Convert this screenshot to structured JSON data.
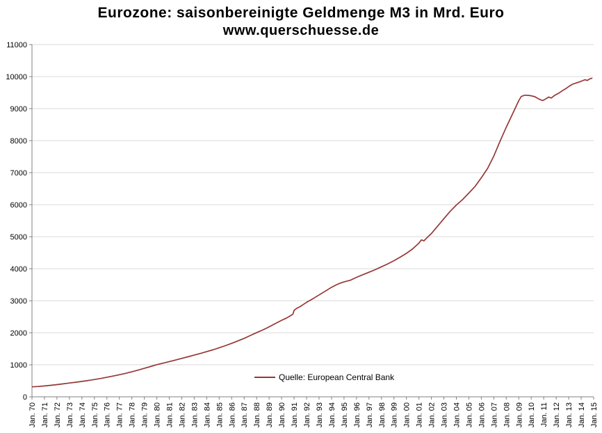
{
  "chart_data": {
    "type": "line",
    "title": "Eurozone: saisonbereinigte Geldmenge M3 in Mrd. Euro",
    "subtitle": "www.querschuesse.de",
    "xlabel": "",
    "ylabel": "",
    "xlim": [
      1970,
      2015
    ],
    "ylim": [
      0,
      11000
    ],
    "y_ticks": [
      0,
      1000,
      2000,
      3000,
      4000,
      5000,
      6000,
      7000,
      8000,
      9000,
      10000,
      11000
    ],
    "x_tick_labels": [
      "Jan. 70",
      "Jan. 71",
      "Jan. 72",
      "Jan. 73",
      "Jan. 74",
      "Jan. 75",
      "Jan. 76",
      "Jan. 77",
      "Jan. 78",
      "Jan. 79",
      "Jan. 80",
      "Jan. 81",
      "Jan. 82",
      "Jan. 83",
      "Jan. 84",
      "Jan. 85",
      "Jan. 86",
      "Jan. 87",
      "Jan. 88",
      "Jan. 89",
      "Jan. 90",
      "Jan. 91",
      "Jan. 92",
      "Jan. 93",
      "Jan. 94",
      "Jan. 95",
      "Jan. 96",
      "Jan. 97",
      "Jan. 98",
      "Jan. 99",
      "Jan. 00",
      "Jan. 01",
      "Jan. 02",
      "Jan. 03",
      "Jan. 04",
      "Jan. 05",
      "Jan. 06",
      "Jan. 07",
      "Jan. 08",
      "Jan. 09",
      "Jan. 10",
      "Jan. 11",
      "Jan. 12",
      "Jan. 13",
      "Jan. 14",
      "Jan. 15"
    ],
    "grid": "horizontal",
    "legend": {
      "label": "Quelle: European Central Bank",
      "position": "bottom-center"
    },
    "series": [
      {
        "name": "Quelle: European Central Bank",
        "color": "#953735",
        "points": [
          [
            1970,
            310
          ],
          [
            1970.5,
            322
          ],
          [
            1971,
            340
          ],
          [
            1971.5,
            358
          ],
          [
            1972,
            380
          ],
          [
            1972.5,
            404
          ],
          [
            1973,
            430
          ],
          [
            1973.5,
            455
          ],
          [
            1974,
            480
          ],
          [
            1974.5,
            508
          ],
          [
            1975,
            540
          ],
          [
            1975.5,
            572
          ],
          [
            1976,
            610
          ],
          [
            1976.5,
            648
          ],
          [
            1977,
            690
          ],
          [
            1977.5,
            733
          ],
          [
            1978,
            780
          ],
          [
            1978.5,
            833
          ],
          [
            1979,
            890
          ],
          [
            1979.5,
            945
          ],
          [
            1980,
            1005
          ],
          [
            1980.5,
            1050
          ],
          [
            1981,
            1100
          ],
          [
            1981.5,
            1148
          ],
          [
            1982,
            1200
          ],
          [
            1982.5,
            1250
          ],
          [
            1983,
            1302
          ],
          [
            1983.5,
            1355
          ],
          [
            1984,
            1410
          ],
          [
            1984.5,
            1468
          ],
          [
            1985,
            1530
          ],
          [
            1985.5,
            1598
          ],
          [
            1986,
            1670
          ],
          [
            1986.5,
            1745
          ],
          [
            1987,
            1825
          ],
          [
            1987.5,
            1915
          ],
          [
            1988,
            2005
          ],
          [
            1988.5,
            2090
          ],
          [
            1989,
            2185
          ],
          [
            1989.5,
            2290
          ],
          [
            1990,
            2390
          ],
          [
            1990.4,
            2460
          ],
          [
            1990.7,
            2530
          ],
          [
            1990.9,
            2580
          ],
          [
            1991,
            2700
          ],
          [
            1991.2,
            2760
          ],
          [
            1991.5,
            2820
          ],
          [
            1992,
            2950
          ],
          [
            1992.5,
            3060
          ],
          [
            1993,
            3180
          ],
          [
            1993.5,
            3300
          ],
          [
            1994,
            3420
          ],
          [
            1994.4,
            3500
          ],
          [
            1994.7,
            3550
          ],
          [
            1995,
            3590
          ],
          [
            1995.5,
            3640
          ],
          [
            1996,
            3730
          ],
          [
            1996.5,
            3810
          ],
          [
            1997,
            3890
          ],
          [
            1997.5,
            3970
          ],
          [
            1998,
            4060
          ],
          [
            1998.5,
            4150
          ],
          [
            1999,
            4250
          ],
          [
            1999.5,
            4360
          ],
          [
            2000,
            4480
          ],
          [
            2000.5,
            4620
          ],
          [
            2001,
            4800
          ],
          [
            2001.2,
            4900
          ],
          [
            2001.4,
            4870
          ],
          [
            2001.6,
            4950
          ],
          [
            2002,
            5100
          ],
          [
            2002.5,
            5330
          ],
          [
            2003,
            5560
          ],
          [
            2003.5,
            5790
          ],
          [
            2004,
            5990
          ],
          [
            2004.5,
            6160
          ],
          [
            2005,
            6360
          ],
          [
            2005.5,
            6570
          ],
          [
            2006,
            6840
          ],
          [
            2006.5,
            7130
          ],
          [
            2007,
            7520
          ],
          [
            2007.5,
            7980
          ],
          [
            2008,
            8420
          ],
          [
            2008.4,
            8750
          ],
          [
            2008.7,
            9000
          ],
          [
            2009,
            9250
          ],
          [
            2009.2,
            9380
          ],
          [
            2009.5,
            9420
          ],
          [
            2009.8,
            9410
          ],
          [
            2010,
            9400
          ],
          [
            2010.3,
            9370
          ],
          [
            2010.6,
            9300
          ],
          [
            2010.9,
            9250
          ],
          [
            2011.1,
            9290
          ],
          [
            2011.4,
            9360
          ],
          [
            2011.6,
            9330
          ],
          [
            2011.9,
            9420
          ],
          [
            2012.2,
            9480
          ],
          [
            2012.5,
            9560
          ],
          [
            2012.8,
            9630
          ],
          [
            2013,
            9690
          ],
          [
            2013.3,
            9760
          ],
          [
            2013.6,
            9800
          ],
          [
            2013.9,
            9840
          ],
          [
            2014.1,
            9870
          ],
          [
            2014.3,
            9900
          ],
          [
            2014.5,
            9880
          ],
          [
            2014.7,
            9930
          ],
          [
            2014.9,
            9950
          ]
        ]
      }
    ],
    "colors": {
      "line": "#953735",
      "grid": "#d9d9d9",
      "axis": "#808080",
      "text": "#000000",
      "background": "#ffffff"
    }
  }
}
